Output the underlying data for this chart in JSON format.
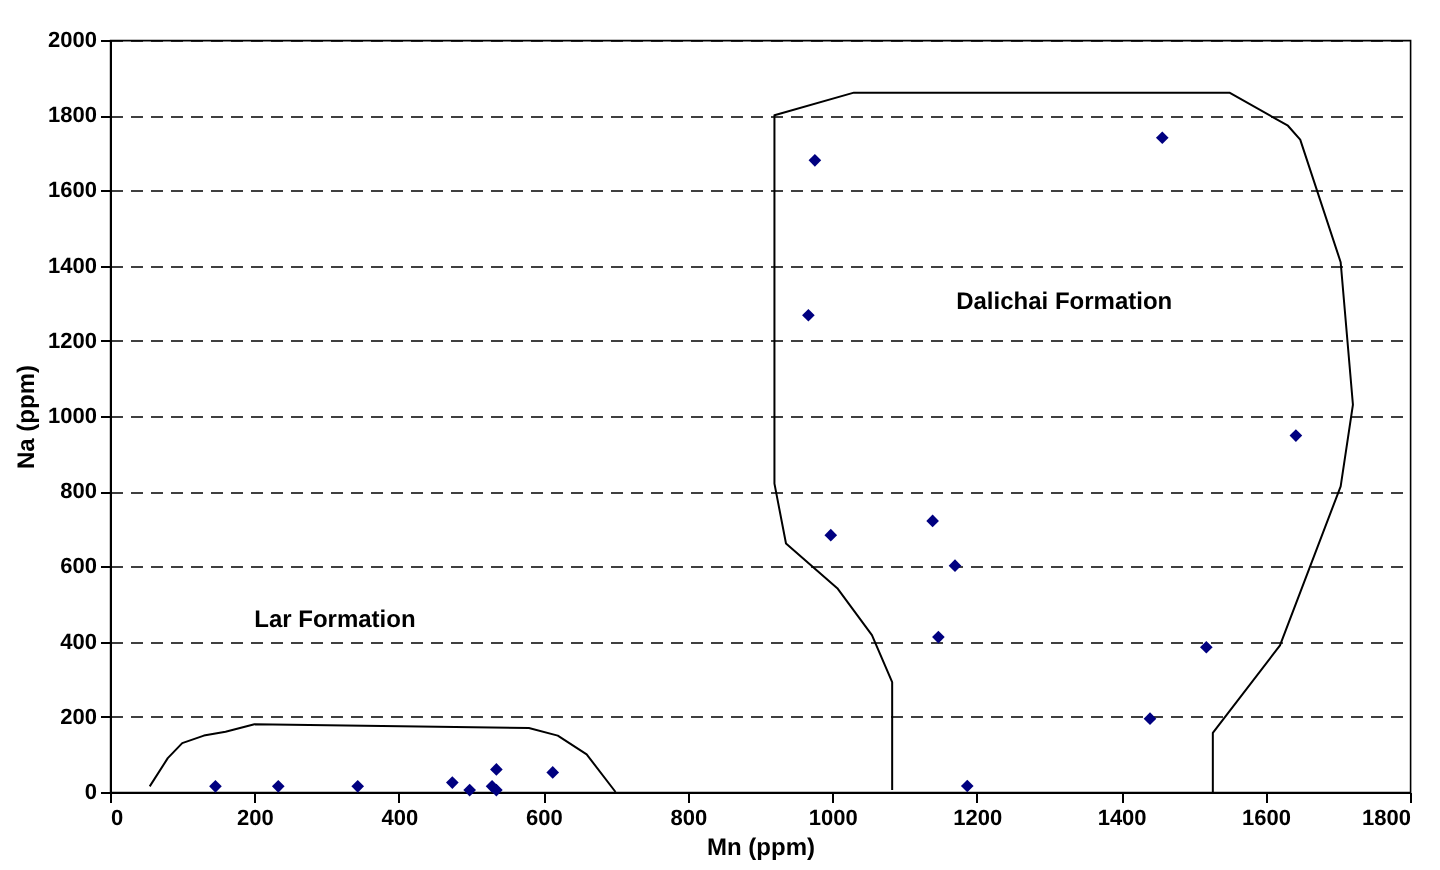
{
  "chart_data": {
    "type": "scatter",
    "xlabel": "Mn (ppm)",
    "ylabel": "Na (ppm)",
    "xlim": [
      0,
      1800
    ],
    "xticks": [
      0,
      200,
      400,
      600,
      800,
      1000,
      1200,
      1400,
      1600,
      1800
    ],
    "ylim": [
      0,
      2000
    ],
    "yticks": [
      0,
      200,
      400,
      600,
      800,
      1000,
      1200,
      1400,
      1600,
      1800,
      2000
    ],
    "grid": "y",
    "marker": "diamond",
    "annotations": [
      "Lar Formation",
      "Dalichai Formation"
    ],
    "series": [
      {
        "color": "#000080",
        "x": [
          146,
          233,
          343,
          474,
          498,
          529,
          535,
          535,
          613,
          976,
          967,
          998,
          1139,
          1170,
          1147,
          1187,
          1457,
          1642,
          1518,
          1440
        ],
        "values": [
          15,
          15,
          15,
          25,
          5,
          15,
          5,
          60,
          52,
          1680,
          1268,
          683,
          721,
          602,
          412,
          16,
          1740,
          948,
          385,
          195
        ]
      },
      {
        "type": "line",
        "color": "#000000",
        "marker": "none",
        "x": [
          55,
          80,
          100,
          130,
          160,
          200,
          580,
          620,
          660,
          700
        ],
        "values": [
          15,
          90,
          130,
          150,
          160,
          180,
          170,
          150,
          100,
          0
        ]
      },
      {
        "type": "line",
        "color": "#000000",
        "marker": "none",
        "x": [
          1083,
          1083,
          1055,
          1007,
          936,
          920,
          920,
          1030,
          1550,
          1631,
          1648,
          1704,
          1721,
          1704,
          1620,
          1527,
          1527
        ],
        "values": [
          5,
          292,
          417,
          542,
          661,
          820,
          1800,
          1860,
          1860,
          1772,
          1735,
          1409,
          1030,
          813,
          390,
          157,
          0
        ]
      }
    ]
  }
}
